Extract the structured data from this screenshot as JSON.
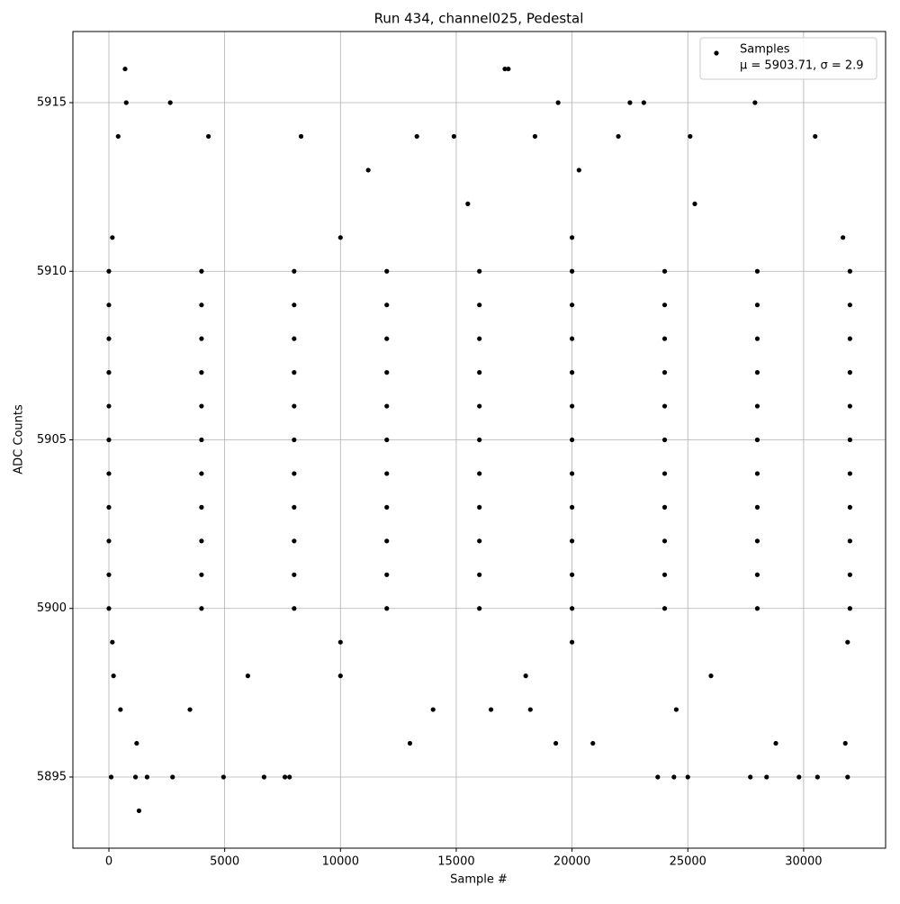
{
  "chart_data": {
    "type": "scatter",
    "title": "Run 434, channel025, Pedestal",
    "xlabel": "Sample #",
    "ylabel": "ADC Counts",
    "xlim": [
      -1554,
      33540
    ],
    "ylim": [
      5892.89,
      5917.11
    ],
    "xticks": [
      0,
      5000,
      10000,
      15000,
      20000,
      25000,
      30000
    ],
    "yticks": [
      5895,
      5900,
      5905,
      5910,
      5915
    ],
    "grid": true,
    "legend": "upper right",
    "legend_note": "μ = 5903.71, σ = 2.9",
    "series": [
      {
        "name": "Samples",
        "color": "#000000",
        "x": [
          0,
          4000,
          8000,
          12000,
          16000,
          20000,
          24000,
          28000,
          32000,
          0,
          4000,
          8000,
          12000,
          16000,
          20000,
          24000,
          28000,
          32000,
          0,
          4000,
          8000,
          12000,
          16000,
          20000,
          24000,
          28000,
          32000,
          0,
          4000,
          8000,
          12000,
          16000,
          20000,
          24000,
          28000,
          32000,
          0,
          4000,
          8000,
          12000,
          16000,
          20000,
          24000,
          28000,
          32000,
          0,
          4000,
          8000,
          12000,
          16000,
          20000,
          24000,
          28000,
          32000,
          0,
          4000,
          8000,
          12000,
          16000,
          20000,
          24000,
          28000,
          32000,
          0,
          4000,
          8000,
          12000,
          16000,
          20000,
          24000,
          28000,
          32000,
          0,
          4000,
          8000,
          12000,
          16000,
          20000,
          24000,
          28000,
          32000,
          0,
          4000,
          8000,
          12000,
          16000,
          20000,
          24000,
          28000,
          32000,
          0,
          4000,
          8000,
          12000,
          16000,
          20000,
          24000,
          28000,
          32000,
          700,
          750,
          2650,
          17100,
          17250,
          19400,
          22500,
          23100,
          27900,
          1300,
          100,
          1150,
          1650,
          2750,
          4950,
          6700,
          7600,
          7800,
          23700,
          24400,
          25000,
          27700,
          28400,
          29800,
          30600,
          31900,
          400,
          4300,
          8300,
          13300,
          14900,
          18400,
          22000,
          25100,
          30500,
          11200,
          20300,
          15500,
          25300,
          1200,
          13000,
          19300,
          20900,
          28800,
          31800,
          500,
          3500,
          14000,
          16500,
          18200,
          24500,
          200,
          6000,
          10000,
          18000,
          26000,
          150,
          10000,
          20000,
          31900,
          150,
          10000,
          20000,
          31700
        ],
        "values": [
          5900,
          5900,
          5900,
          5900,
          5900,
          5900,
          5900,
          5900,
          5900,
          5901,
          5901,
          5901,
          5901,
          5901,
          5901,
          5901,
          5901,
          5901,
          5902,
          5902,
          5902,
          5902,
          5902,
          5902,
          5902,
          5902,
          5902,
          5903,
          5903,
          5903,
          5903,
          5903,
          5903,
          5903,
          5903,
          5903,
          5904,
          5904,
          5904,
          5904,
          5904,
          5904,
          5904,
          5904,
          5904,
          5905,
          5905,
          5905,
          5905,
          5905,
          5905,
          5905,
          5905,
          5905,
          5906,
          5906,
          5906,
          5906,
          5906,
          5906,
          5906,
          5906,
          5906,
          5907,
          5907,
          5907,
          5907,
          5907,
          5907,
          5907,
          5907,
          5907,
          5908,
          5908,
          5908,
          5908,
          5908,
          5908,
          5908,
          5908,
          5908,
          5909,
          5909,
          5909,
          5909,
          5909,
          5909,
          5909,
          5909,
          5909,
          5910,
          5910,
          5910,
          5910,
          5910,
          5910,
          5910,
          5910,
          5910,
          5916,
          5915,
          5915,
          5916,
          5916,
          5915,
          5915,
          5915,
          5915,
          5894,
          5895,
          5895,
          5895,
          5895,
          5895,
          5895,
          5895,
          5895,
          5895,
          5895,
          5895,
          5895,
          5895,
          5895,
          5895,
          5895,
          5914,
          5914,
          5914,
          5914,
          5914,
          5914,
          5914,
          5914,
          5914,
          5913,
          5913,
          5912,
          5912,
          5896,
          5896,
          5896,
          5896,
          5896,
          5896,
          5897,
          5897,
          5897,
          5897,
          5897,
          5897,
          5898,
          5898,
          5898,
          5898,
          5898,
          5899,
          5899,
          5899,
          5899,
          5911,
          5911,
          5911,
          5911
        ]
      }
    ]
  }
}
